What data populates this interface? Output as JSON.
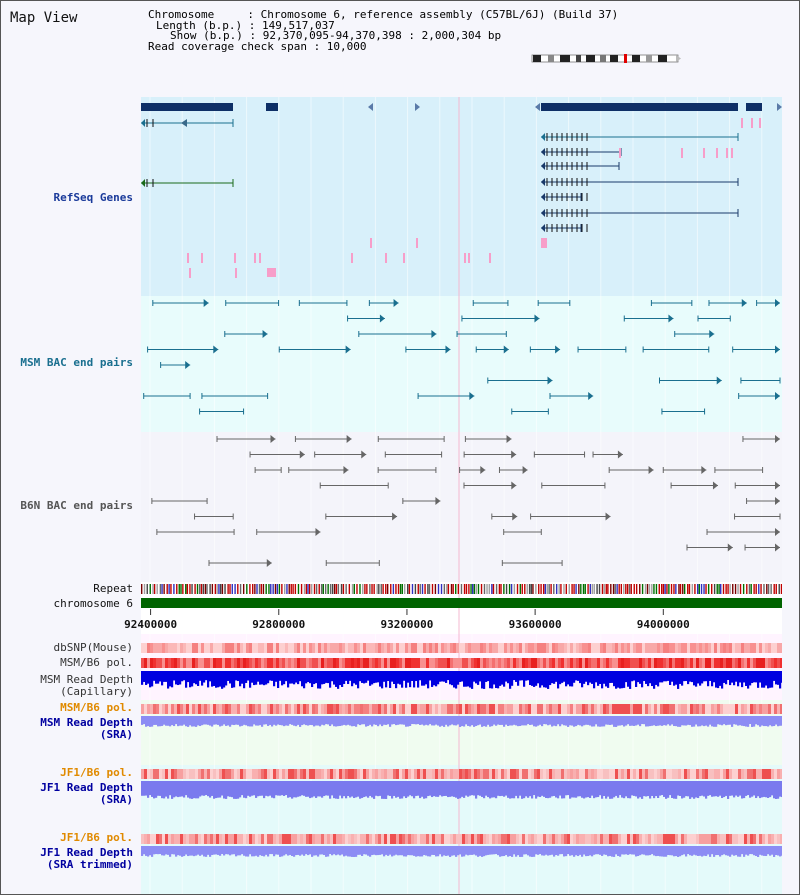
{
  "title": "Map View",
  "info": {
    "chromosome": "Chromosome     : Chromosome 6, reference assembly (C57BL/6J) (Build 37)",
    "length": "Length (b.p.) : 149,517,037",
    "show": "Show (b.p.) : 92,370,095-94,370,398 : 2,000,304 bp",
    "coverage": "Read coverage check span : 10,000"
  },
  "view": {
    "start": 92370095,
    "end": 94370398
  },
  "tracks": {
    "refseq": {
      "label": "RefSeq Genes",
      "color": "#1a3a9a"
    },
    "msm_bac": {
      "label": "MSM BAC end pairs",
      "color": "#1a6f8f"
    },
    "b6n_bac": {
      "label": "B6N BAC end pairs",
      "color": "#555555"
    },
    "repeat": {
      "label": "Repeat"
    },
    "chromosome": {
      "label": "chromosome 6",
      "color": "#006400"
    },
    "dbsnp": {
      "label": "dbSNP(Mouse)"
    },
    "msm_pol_cap": {
      "label": "MSM/B6 pol."
    },
    "msm_depth_cap": {
      "label1": "MSM Read Depth",
      "label2": "(Capillary)"
    },
    "msm_pol_sra": {
      "label": "MSM/B6 pol.",
      "color": "#e08a00"
    },
    "msm_depth_sra": {
      "label1": "MSM Read Depth",
      "label2": "(SRA)",
      "color": "#0000a0"
    },
    "jf1_pol_sra": {
      "label": "JF1/B6 pol.",
      "color": "#e08a00"
    },
    "jf1_depth_sra": {
      "label1": "JF1 Read Depth",
      "label2": "(SRA)",
      "color": "#0000a0"
    },
    "jf1_pol_trim": {
      "label": "JF1/B6 pol.",
      "color": "#e08a00"
    },
    "jf1_depth_trim": {
      "label1": "JF1 Read Depth",
      "label2": "(SRA trimmed)",
      "color": "#0000a0"
    }
  },
  "ticks": [
    "92400000",
    "92800000",
    "93200000",
    "93600000",
    "94000000"
  ]
}
